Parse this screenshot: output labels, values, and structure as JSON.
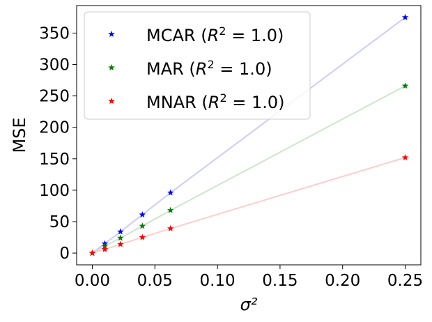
{
  "chart_data": {
    "type": "scatter",
    "title": "",
    "xlabel": "σ²",
    "ylabel": "MSE",
    "xlim": [
      -0.0125,
      0.2625
    ],
    "ylim": [
      -18.75,
      393.75
    ],
    "xticks": [
      0.0,
      0.05,
      0.1,
      0.15,
      0.2,
      0.25
    ],
    "xtick_labels": [
      "0.00",
      "0.05",
      "0.10",
      "0.15",
      "0.20",
      "0.25"
    ],
    "yticks": [
      0,
      50,
      100,
      150,
      200,
      250,
      300,
      350
    ],
    "ytick_labels": [
      "0",
      "50",
      "100",
      "150",
      "200",
      "250",
      "300",
      "350"
    ],
    "grid": false,
    "legend_position": "top-left",
    "x": [
      0.0,
      0.01,
      0.0225,
      0.04,
      0.0625,
      0.25
    ],
    "series": [
      {
        "name": "MCAR",
        "legend_label": "MCAR (R² = 1.0)",
        "label_prefix": "MCAR (",
        "label_r": "R",
        "label_sup": "2",
        "label_suffix": " = 1.0)",
        "color": "#0000ff",
        "fit_color": "#ccccff",
        "values": [
          0,
          15,
          34,
          61,
          96,
          375
        ]
      },
      {
        "name": "MAR",
        "legend_label": "MAR (R² = 1.0)",
        "label_prefix": "MAR (",
        "label_r": "R",
        "label_sup": "2",
        "label_suffix": " = 1.0)",
        "color": "#008000",
        "fit_color": "#cce6cc",
        "values": [
          0,
          11,
          24,
          43,
          68,
          266
        ]
      },
      {
        "name": "MNAR",
        "legend_label": "MNAR (R² = 1.0)",
        "label_prefix": "MNAR (",
        "label_r": "R",
        "label_sup": "2",
        "label_suffix": " = 1.0)",
        "color": "#ff0000",
        "fit_color": "#ffcccc",
        "values": [
          0,
          6,
          14,
          25,
          39,
          152
        ]
      }
    ]
  }
}
